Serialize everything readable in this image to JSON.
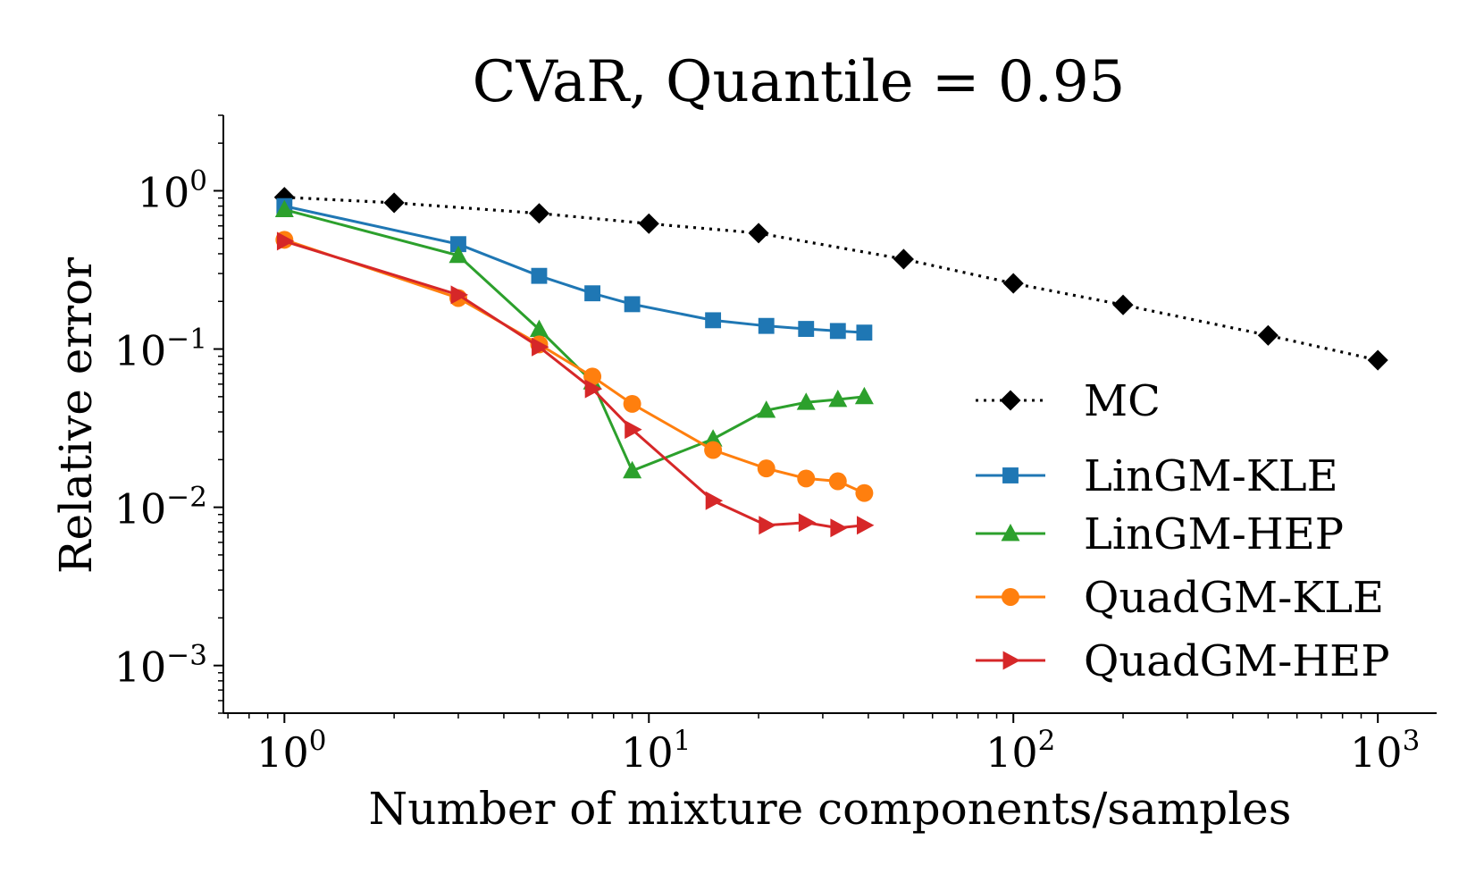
{
  "chart_data": {
    "type": "line",
    "title": "CVaR, Quantile = 0.95",
    "xlabel": "Number of mixture components/samples",
    "ylabel": "Relative error",
    "xscale": "log",
    "yscale": "log",
    "xlim": [
      0.68,
      1450
    ],
    "ylim": [
      0.0005,
      3
    ],
    "grid": false,
    "legend_position": "center-right",
    "x_ticks": [
      {
        "value": 1,
        "base": "10",
        "exp": "0"
      },
      {
        "value": 10,
        "base": "10",
        "exp": "1"
      },
      {
        "value": 100,
        "base": "10",
        "exp": "2"
      },
      {
        "value": 1000,
        "base": "10",
        "exp": "3"
      }
    ],
    "y_ticks": [
      {
        "value": 1,
        "base": "10",
        "exp": "0"
      },
      {
        "value": 0.1,
        "base": "10",
        "exp": "−1"
      },
      {
        "value": 0.01,
        "base": "10",
        "exp": "−2"
      },
      {
        "value": 0.001,
        "base": "10",
        "exp": "−3"
      }
    ],
    "series": [
      {
        "name": "MC",
        "color": "#000000",
        "marker": "diamond",
        "dash": "dotted",
        "x": [
          1,
          2,
          5,
          10,
          20,
          50,
          100,
          200,
          500,
          1000
        ],
        "y": [
          0.91,
          0.84,
          0.72,
          0.62,
          0.54,
          0.37,
          0.26,
          0.19,
          0.122,
          0.085
        ]
      },
      {
        "name": "LinGM-KLE",
        "color": "#1f77b4",
        "marker": "square",
        "dash": "solid",
        "x": [
          1,
          3,
          5,
          7,
          9,
          15,
          21,
          27,
          33,
          39
        ],
        "y": [
          0.8,
          0.46,
          0.29,
          0.225,
          0.192,
          0.152,
          0.14,
          0.134,
          0.13,
          0.127
        ]
      },
      {
        "name": "LinGM-HEP",
        "color": "#2ca02c",
        "marker": "triangle-up",
        "dash": "solid",
        "x": [
          1,
          3,
          5,
          7,
          9,
          15,
          21,
          27,
          33,
          39
        ],
        "y": [
          0.76,
          0.39,
          0.133,
          0.062,
          0.017,
          0.027,
          0.041,
          0.046,
          0.048,
          0.05
        ]
      },
      {
        "name": "QuadGM-KLE",
        "color": "#ff7f0e",
        "marker": "circle",
        "dash": "solid",
        "x": [
          1,
          3,
          5,
          7,
          9,
          15,
          21,
          27,
          33,
          39
        ],
        "y": [
          0.49,
          0.21,
          0.107,
          0.067,
          0.045,
          0.023,
          0.0176,
          0.0152,
          0.0146,
          0.0123
        ]
      },
      {
        "name": "QuadGM-HEP",
        "color": "#d62728",
        "marker": "triangle-right",
        "dash": "solid",
        "x": [
          1,
          3,
          5,
          7,
          9,
          15,
          21,
          27,
          33,
          39
        ],
        "y": [
          0.48,
          0.22,
          0.103,
          0.056,
          0.031,
          0.011,
          0.0077,
          0.008,
          0.0074,
          0.0077
        ]
      }
    ]
  }
}
